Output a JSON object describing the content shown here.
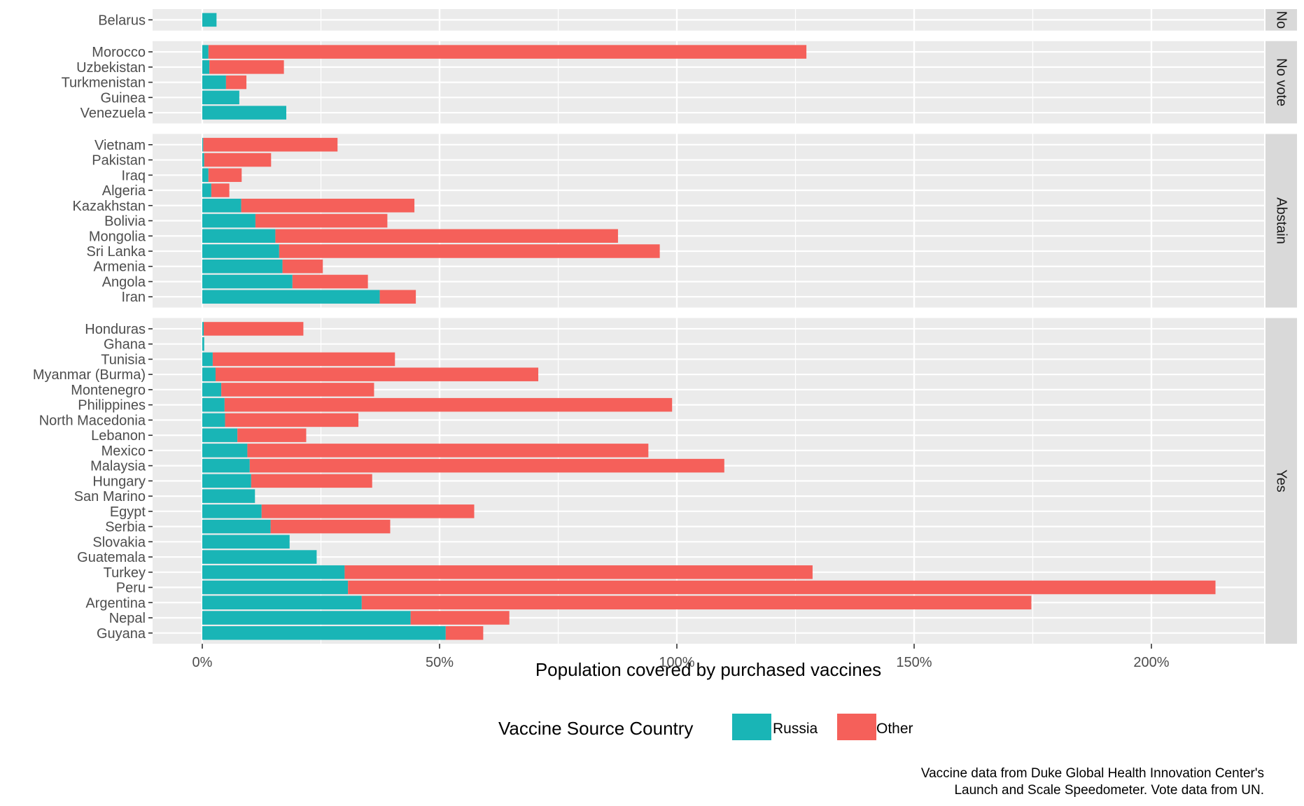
{
  "chart_data": {
    "type": "bar",
    "orientation": "horizontal",
    "stacked": true,
    "xlabel": "Population covered by purchased vaccines",
    "x_ticks": [
      "0%",
      "50%",
      "100%",
      "150%",
      "200%"
    ],
    "x_tick_values": [
      0,
      50,
      100,
      150,
      200
    ],
    "xlim": [
      -10,
      230
    ],
    "legend": {
      "title": "Vaccine Source Country",
      "position": "bottom",
      "entries": [
        {
          "name": "Russia",
          "color": "#19b5b6"
        },
        {
          "name": "Other",
          "color": "#f5605a"
        }
      ]
    },
    "caption": [
      "Vaccine data from Duke Global Health Innovation Center's",
      "Launch and Scale Speedometer. Vote data from UN."
    ],
    "series": [
      {
        "name": "Russia",
        "color": "#19b5b6"
      },
      {
        "name": "Other",
        "color": "#f5605a"
      }
    ],
    "facets": [
      {
        "label": "No",
        "rows": [
          {
            "country": "Belarus",
            "russia": 3.0,
            "other": 0
          }
        ]
      },
      {
        "label": "No vote",
        "rows": [
          {
            "country": "Morocco",
            "russia": 1.3,
            "other": 126.0
          },
          {
            "country": "Uzbekistan",
            "russia": 1.5,
            "other": 15.7
          },
          {
            "country": "Turkmenistan",
            "russia": 5.0,
            "other": 4.3
          },
          {
            "country": "Guinea",
            "russia": 7.8,
            "other": 0
          },
          {
            "country": "Venezuela",
            "russia": 17.7,
            "other": 0
          }
        ]
      },
      {
        "label": "Abstain",
        "rows": [
          {
            "country": "Vietnam",
            "russia": 0.2,
            "other": 28.3
          },
          {
            "country": "Pakistan",
            "russia": 0.4,
            "other": 14.1
          },
          {
            "country": "Iraq",
            "russia": 1.3,
            "other": 7.0
          },
          {
            "country": "Algeria",
            "russia": 1.9,
            "other": 3.8
          },
          {
            "country": "Kazakhstan",
            "russia": 8.2,
            "other": 36.5
          },
          {
            "country": "Bolivia",
            "russia": 11.2,
            "other": 27.8
          },
          {
            "country": "Mongolia",
            "russia": 15.4,
            "other": 72.2
          },
          {
            "country": "Sri Lanka",
            "russia": 16.2,
            "other": 80.2
          },
          {
            "country": "Armenia",
            "russia": 16.9,
            "other": 8.5
          },
          {
            "country": "Angola",
            "russia": 19.0,
            "other": 15.9
          },
          {
            "country": "Iran",
            "russia": 37.4,
            "other": 7.6
          }
        ]
      },
      {
        "label": "Yes",
        "rows": [
          {
            "country": "Honduras",
            "russia": 0.3,
            "other": 21.0
          },
          {
            "country": "Ghana",
            "russia": 0.4,
            "other": 0
          },
          {
            "country": "Tunisia",
            "russia": 2.2,
            "other": 38.4
          },
          {
            "country": "Myanmar (Burma)",
            "russia": 2.8,
            "other": 68.0
          },
          {
            "country": "Montenegro",
            "russia": 4.0,
            "other": 32.2
          },
          {
            "country": "Philippines",
            "russia": 4.7,
            "other": 94.3
          },
          {
            "country": "North Macedonia",
            "russia": 4.8,
            "other": 28.1
          },
          {
            "country": "Lebanon",
            "russia": 7.4,
            "other": 14.5
          },
          {
            "country": "Mexico",
            "russia": 9.5,
            "other": 84.5
          },
          {
            "country": "Malaysia",
            "russia": 10.0,
            "other": 100.0
          },
          {
            "country": "Hungary",
            "russia": 10.3,
            "other": 25.5
          },
          {
            "country": "San Marino",
            "russia": 11.1,
            "other": 0
          },
          {
            "country": "Egypt",
            "russia": 12.5,
            "other": 44.8
          },
          {
            "country": "Serbia",
            "russia": 14.4,
            "other": 25.2
          },
          {
            "country": "Slovakia",
            "russia": 18.4,
            "other": 0
          },
          {
            "country": "Guatemala",
            "russia": 24.1,
            "other": 0
          },
          {
            "country": "Turkey",
            "russia": 30.0,
            "other": 98.6
          },
          {
            "country": "Peru",
            "russia": 30.7,
            "other": 182.8
          },
          {
            "country": "Argentina",
            "russia": 33.6,
            "other": 141.1
          },
          {
            "country": "Nepal",
            "russia": 43.9,
            "other": 20.8
          },
          {
            "country": "Guyana",
            "russia": 51.3,
            "other": 7.9
          }
        ]
      }
    ]
  }
}
